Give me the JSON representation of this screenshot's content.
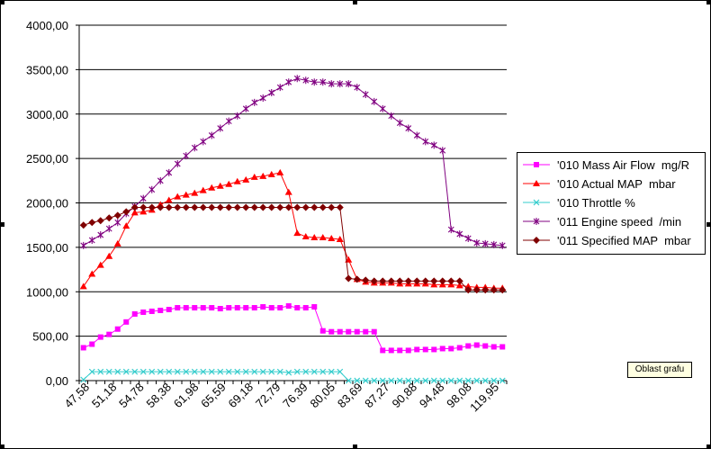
{
  "chart_data": {
    "type": "line",
    "title": "",
    "xlabel": "",
    "ylabel": "",
    "ylim": [
      0,
      4000
    ],
    "y_ticks": [
      "0,00",
      "500,00",
      "1000,00",
      "1500,00",
      "2000,00",
      "2500,00",
      "3000,00",
      "3500,00",
      "4000,00"
    ],
    "x_tick_labels": [
      "47,58",
      "51,18",
      "54,78",
      "58,38",
      "61,98",
      "65,59",
      "69,18",
      "72,79",
      "76,39",
      "80,05",
      "83,69",
      "87,27",
      "90,88",
      "94,48",
      "98,08",
      "119,95"
    ],
    "grid": "horizontal",
    "legend_position": "right",
    "series": [
      {
        "name": "'010 Mass Air Flow  mg/R",
        "color": "#ff00ff",
        "marker": "square",
        "values": [
          370,
          410,
          490,
          520,
          580,
          660,
          750,
          770,
          780,
          790,
          800,
          820,
          820,
          820,
          820,
          820,
          810,
          820,
          820,
          820,
          820,
          830,
          820,
          820,
          840,
          820,
          820,
          830,
          560,
          550,
          550,
          550,
          550,
          550,
          550,
          340,
          340,
          340,
          340,
          350,
          350,
          350,
          360,
          360,
          370,
          390,
          400,
          390,
          380,
          380
        ]
      },
      {
        "name": "'010 Actual MAP  mbar",
        "color": "#ff0000",
        "marker": "triangle",
        "values": [
          1060,
          1200,
          1300,
          1400,
          1540,
          1740,
          1890,
          1900,
          1920,
          1980,
          2030,
          2070,
          2090,
          2110,
          2140,
          2170,
          2190,
          2210,
          2240,
          2260,
          2290,
          2300,
          2320,
          2340,
          2120,
          1660,
          1620,
          1610,
          1610,
          1600,
          1590,
          1360,
          1140,
          1110,
          1100,
          1100,
          1100,
          1090,
          1090,
          1090,
          1090,
          1080,
          1080,
          1080,
          1070,
          1060,
          1050,
          1050,
          1040,
          1040
        ]
      },
      {
        "name": "'010 Throttle %",
        "color": "#33cccc",
        "marker": "x",
        "values": [
          10,
          100,
          100,
          100,
          100,
          100,
          100,
          100,
          100,
          100,
          100,
          100,
          100,
          100,
          100,
          100,
          100,
          100,
          100,
          100,
          100,
          100,
          100,
          100,
          90,
          100,
          100,
          100,
          100,
          100,
          100,
          0,
          0,
          0,
          0,
          0,
          0,
          0,
          0,
          0,
          0,
          0,
          0,
          0,
          0,
          0,
          0,
          0,
          0,
          0
        ]
      },
      {
        "name": "'011 Engine speed  /min",
        "color": "#800080",
        "marker": "star",
        "values": [
          1520,
          1580,
          1640,
          1710,
          1780,
          1880,
          1960,
          2050,
          2150,
          2250,
          2340,
          2440,
          2530,
          2620,
          2690,
          2760,
          2840,
          2920,
          2980,
          3060,
          3130,
          3180,
          3240,
          3300,
          3360,
          3400,
          3380,
          3360,
          3360,
          3340,
          3340,
          3340,
          3300,
          3220,
          3140,
          3060,
          2980,
          2900,
          2840,
          2760,
          2690,
          2650,
          2590,
          1700,
          1650,
          1600,
          1550,
          1540,
          1530,
          1520
        ]
      },
      {
        "name": "'011 Specified MAP  mbar",
        "color": "#800000",
        "marker": "diamond",
        "values": [
          1750,
          1780,
          1800,
          1830,
          1860,
          1900,
          1950,
          1950,
          1950,
          1950,
          1950,
          1950,
          1950,
          1950,
          1950,
          1950,
          1950,
          1950,
          1950,
          1950,
          1950,
          1950,
          1950,
          1950,
          1950,
          1950,
          1950,
          1950,
          1950,
          1950,
          1950,
          1150,
          1140,
          1130,
          1120,
          1120,
          1120,
          1120,
          1120,
          1120,
          1120,
          1120,
          1120,
          1120,
          1120,
          1020,
          1020,
          1020,
          1020,
          1020
        ]
      }
    ]
  },
  "tooltip": "Oblast grafu"
}
